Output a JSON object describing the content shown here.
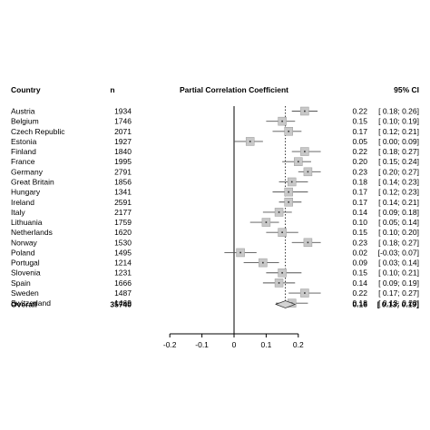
{
  "chart_data": {
    "type": "forest",
    "headers": {
      "country": "Country",
      "n": "n",
      "effect": "Partial Correlation Coefficient",
      "ci": "95% CI"
    },
    "rows": [
      {
        "country": "Austria",
        "n": "1934",
        "est": 0.22,
        "lo": 0.18,
        "hi": 0.26,
        "label": "0.22",
        "ci": "[ 0.18; 0.26]"
      },
      {
        "country": "Belgium",
        "n": "1746",
        "est": 0.15,
        "lo": 0.1,
        "hi": 0.19,
        "label": "0.15",
        "ci": "[ 0.10; 0.19]"
      },
      {
        "country": "Czech Republic",
        "n": "2071",
        "est": 0.17,
        "lo": 0.12,
        "hi": 0.21,
        "label": "0.17",
        "ci": "[ 0.12; 0.21]"
      },
      {
        "country": "Estonia",
        "n": "1927",
        "est": 0.05,
        "lo": 0.0,
        "hi": 0.09,
        "label": "0.05",
        "ci": "[ 0.00; 0.09]"
      },
      {
        "country": "Finland",
        "n": "1840",
        "est": 0.22,
        "lo": 0.18,
        "hi": 0.27,
        "label": "0.22",
        "ci": "[ 0.18; 0.27]"
      },
      {
        "country": "France",
        "n": "1995",
        "est": 0.2,
        "lo": 0.15,
        "hi": 0.24,
        "label": "0.20",
        "ci": "[ 0.15; 0.24]"
      },
      {
        "country": "Germany",
        "n": "2791",
        "est": 0.23,
        "lo": 0.2,
        "hi": 0.27,
        "label": "0.23",
        "ci": "[ 0.20; 0.27]"
      },
      {
        "country": "Great Britain",
        "n": "1856",
        "est": 0.18,
        "lo": 0.14,
        "hi": 0.23,
        "label": "0.18",
        "ci": "[ 0.14; 0.23]"
      },
      {
        "country": "Hungary",
        "n": "1341",
        "est": 0.17,
        "lo": 0.12,
        "hi": 0.23,
        "label": "0.17",
        "ci": "[ 0.12; 0.23]"
      },
      {
        "country": "Ireland",
        "n": "2591",
        "est": 0.17,
        "lo": 0.14,
        "hi": 0.21,
        "label": "0.17",
        "ci": "[ 0.14; 0.21]"
      },
      {
        "country": "Italy",
        "n": "2177",
        "est": 0.14,
        "lo": 0.09,
        "hi": 0.18,
        "label": "0.14",
        "ci": "[ 0.09; 0.18]"
      },
      {
        "country": "Lithuania",
        "n": "1759",
        "est": 0.1,
        "lo": 0.05,
        "hi": 0.14,
        "label": "0.10",
        "ci": "[ 0.05; 0.14]"
      },
      {
        "country": "Netherlands",
        "n": "1620",
        "est": 0.15,
        "lo": 0.1,
        "hi": 0.2,
        "label": "0.15",
        "ci": "[ 0.10; 0.20]"
      },
      {
        "country": "Norway",
        "n": "1530",
        "est": 0.23,
        "lo": 0.18,
        "hi": 0.27,
        "label": "0.23",
        "ci": "[ 0.18; 0.27]"
      },
      {
        "country": "Poland",
        "n": "1495",
        "est": 0.02,
        "lo": -0.03,
        "hi": 0.07,
        "label": "0.02",
        "ci": "[-0.03; 0.07]"
      },
      {
        "country": "Portugal",
        "n": "1214",
        "est": 0.09,
        "lo": 0.03,
        "hi": 0.14,
        "label": "0.09",
        "ci": "[ 0.03; 0.14]"
      },
      {
        "country": "Slovenia",
        "n": "1231",
        "est": 0.15,
        "lo": 0.1,
        "hi": 0.21,
        "label": "0.15",
        "ci": "[ 0.10; 0.21]"
      },
      {
        "country": "Spain",
        "n": "1666",
        "est": 0.14,
        "lo": 0.09,
        "hi": 0.19,
        "label": "0.14",
        "ci": "[ 0.09; 0.19]"
      },
      {
        "country": "Sweden",
        "n": "1487",
        "est": 0.22,
        "lo": 0.17,
        "hi": 0.27,
        "label": "0.22",
        "ci": "[ 0.17; 0.27]"
      },
      {
        "country": "Switzerland",
        "n": "1469",
        "est": 0.18,
        "lo": 0.13,
        "hi": 0.23,
        "label": "0.18",
        "ci": "[ 0.13; 0.23]"
      }
    ],
    "overall": {
      "country": "Overall",
      "n": "35740",
      "est": 0.16,
      "lo": 0.13,
      "hi": 0.19,
      "label": "0.16",
      "ci": "[ 0.13; 0.19]"
    },
    "xlim": [
      -0.25,
      0.25
    ],
    "xticks": [
      -0.2,
      -0.1,
      0,
      0.1,
      0.2
    ],
    "xtick_labels": [
      "-0.2",
      "-0.1",
      "0",
      "0.1",
      "0.2"
    ],
    "reference_line": 0,
    "summary_line": 0.16,
    "colors": {
      "box": "#c8c8c8",
      "box_stroke": "#999999",
      "diamond": "#d3d3d3",
      "line": "#000000",
      "ci_line": "#555555"
    }
  }
}
